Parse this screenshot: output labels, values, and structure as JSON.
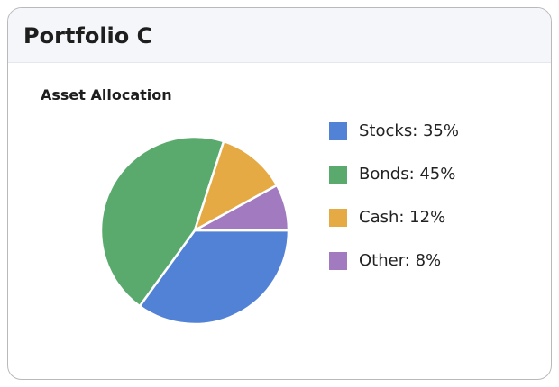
{
  "header": {
    "title": "Portfolio C"
  },
  "chart_data": {
    "type": "pie",
    "title": "Asset Allocation",
    "slices": [
      {
        "label": "Stocks",
        "value": 35,
        "display": "Stocks: 35%",
        "color": "#5182d6"
      },
      {
        "label": "Bonds",
        "value": 45,
        "display": "Bonds: 45%",
        "color": "#5aaa6e"
      },
      {
        "label": "Cash",
        "value": 12,
        "display": "Cash: 12%",
        "color": "#e6aa45"
      },
      {
        "label": "Other",
        "value": 8,
        "display": "Other: 8%",
        "color": "#a17ac0"
      }
    ],
    "legend_position": "right"
  }
}
